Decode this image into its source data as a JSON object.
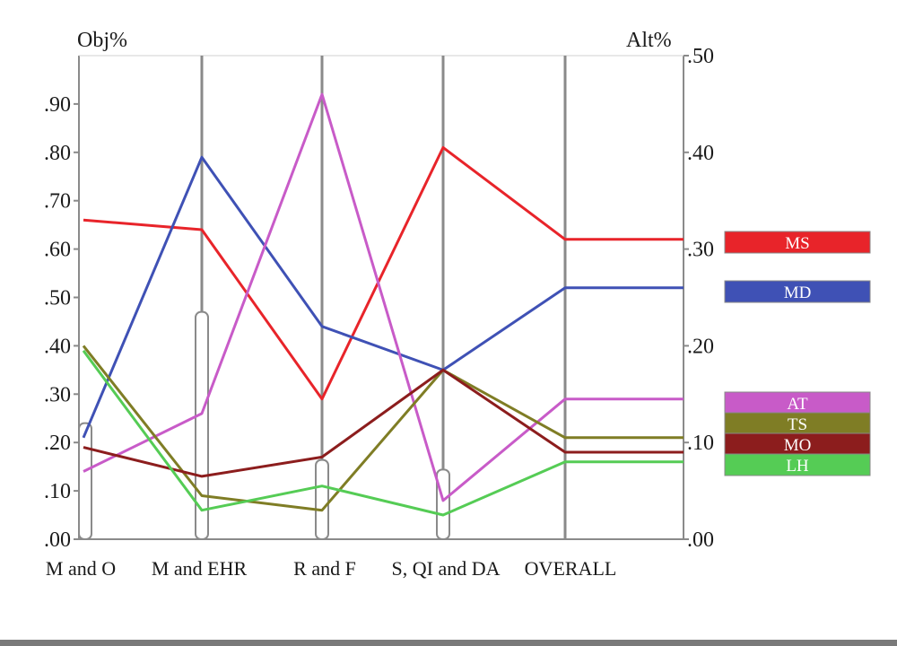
{
  "chart_data": {
    "type": "line",
    "left_axis_label": "Obj%",
    "right_axis_label": "Alt%",
    "categories": [
      "M and O",
      "M and EHR",
      "R and F",
      "S, QI and DA",
      "OVERALL"
    ],
    "left_ticks": [
      ".00",
      ".10",
      ".20",
      ".30",
      ".40",
      ".50",
      ".60",
      ".70",
      ".80",
      ".90"
    ],
    "right_ticks": [
      ".00",
      ".10",
      ".20",
      ".30",
      ".40",
      ".50"
    ],
    "ylim_left": [
      0,
      1.0
    ],
    "ylim_right": [
      0,
      0.5
    ],
    "grid": "vertical category lines",
    "legend_position": "right",
    "series": [
      {
        "name": "MS",
        "color": "#e8242a",
        "values": [
          0.66,
          0.64,
          0.29,
          0.81,
          0.62
        ]
      },
      {
        "name": "MD",
        "color": "#3f51b5",
        "values": [
          0.21,
          0.79,
          0.44,
          0.35,
          0.52
        ]
      },
      {
        "name": "AT",
        "color": "#c85bc8",
        "values": [
          0.14,
          0.26,
          0.92,
          0.08,
          0.29
        ]
      },
      {
        "name": "TS",
        "color": "#7f7d25",
        "values": [
          0.4,
          0.09,
          0.06,
          0.35,
          0.21
        ]
      },
      {
        "name": "MO",
        "color": "#8c1d1d",
        "values": [
          0.19,
          0.13,
          0.17,
          0.35,
          0.18
        ]
      },
      {
        "name": "LH",
        "color": "#55cc55",
        "values": [
          0.39,
          0.06,
          0.11,
          0.05,
          0.16
        ]
      }
    ],
    "bars": {
      "axis": "right",
      "values": [
        0.12,
        0.235,
        0.082,
        0.072,
        0
      ]
    }
  }
}
